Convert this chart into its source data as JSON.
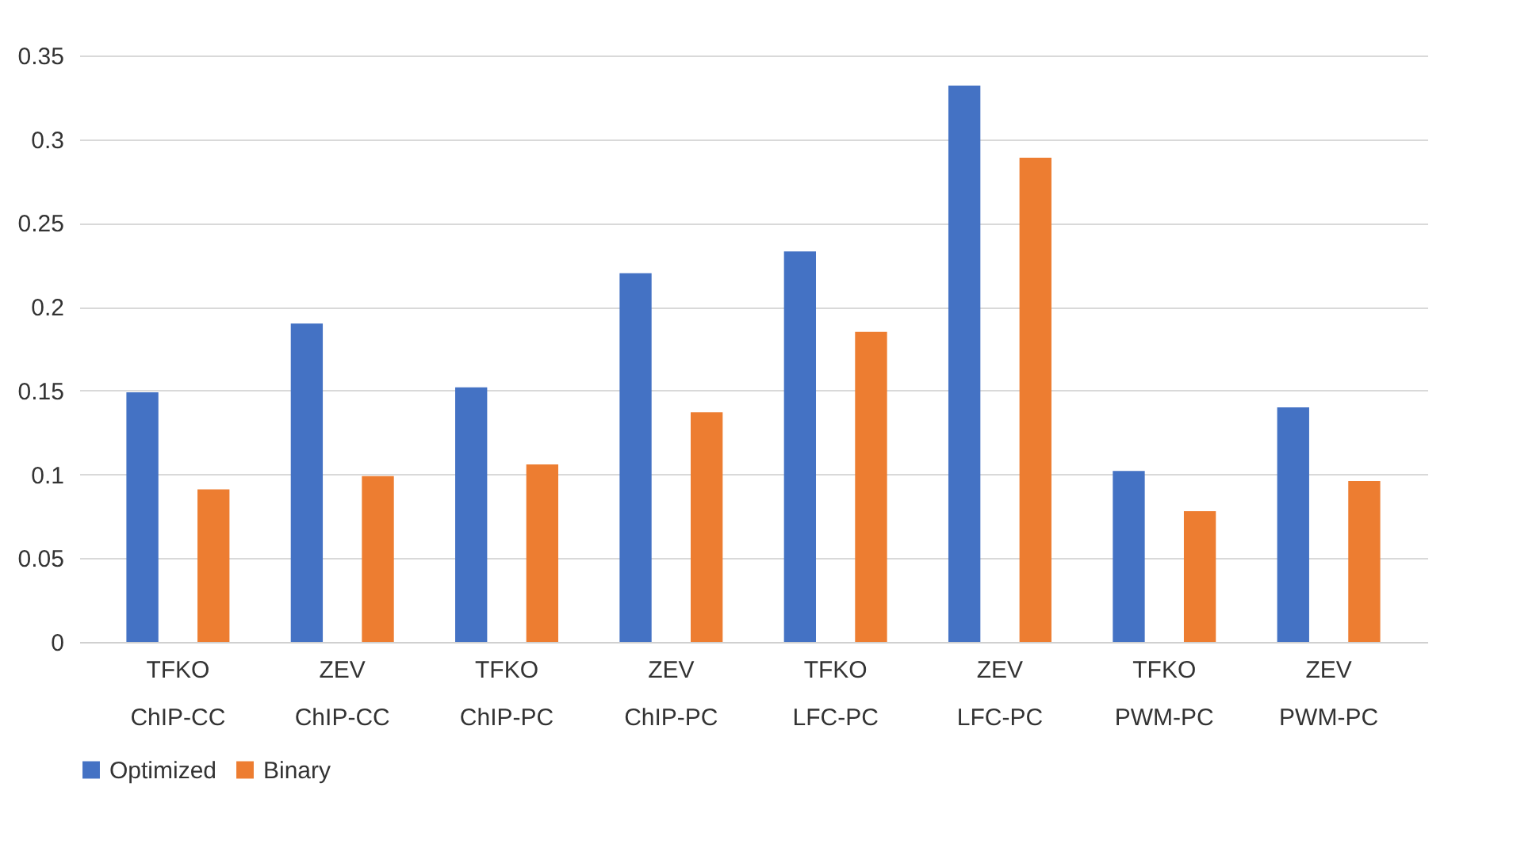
{
  "chart_data": {
    "type": "bar",
    "categories": [
      "TFKO ChIP-CC",
      "ZEV ChIP-CC",
      "TFKO ChIP-PC",
      "ZEV ChIP-PC",
      "TFKO LFC-PC",
      "ZEV LFC-PC",
      "TFKO PWM-PC",
      "ZEV PWM-PC"
    ],
    "series": [
      {
        "name": "Optimized",
        "color": "#4472c4",
        "values": [
          0.149,
          0.19,
          0.152,
          0.22,
          0.233,
          0.332,
          0.102,
          0.14
        ]
      },
      {
        "name": "Binary",
        "color": "#ed7d31",
        "values": [
          0.091,
          0.099,
          0.106,
          0.137,
          0.185,
          0.289,
          0.078,
          0.096
        ]
      }
    ],
    "ylim": [
      0,
      0.35
    ],
    "yticks": [
      0,
      0.05,
      0.1,
      0.15,
      0.2,
      0.25,
      0.3,
      0.35
    ],
    "grid": "y",
    "legend": "bottom"
  }
}
